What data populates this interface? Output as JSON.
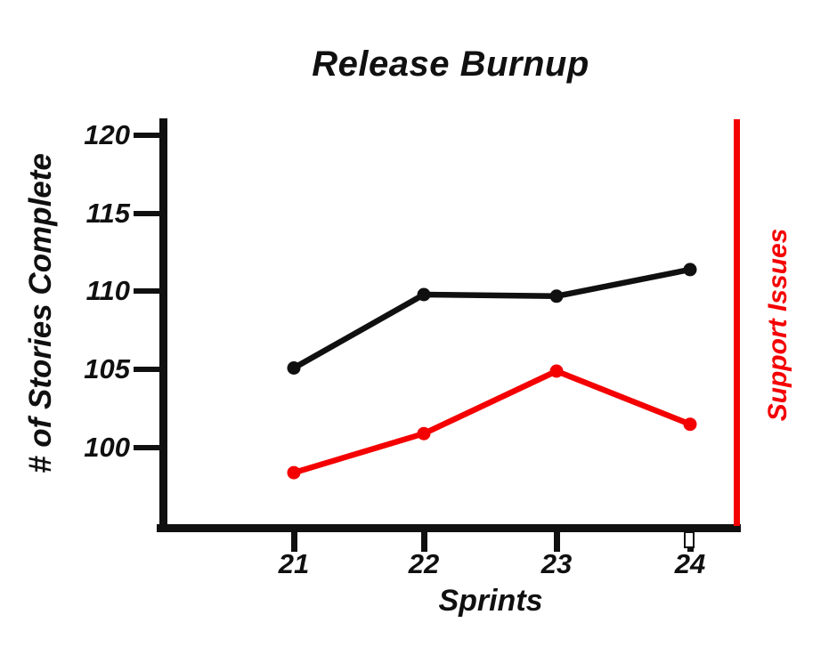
{
  "title": "Release Burnup",
  "colors": {
    "axis_and_text": "#101010",
    "support_red": "#f40000",
    "background": "#ffffff"
  },
  "chart_data": {
    "type": "line",
    "title": "Release Burnup",
    "xlabel": "Sprints",
    "ylabel": "# of Stories Complete",
    "right_label": "Support Issues",
    "categories": [
      21,
      22,
      23,
      24
    ],
    "xtick_labels": [
      "21",
      "22",
      "23",
      "24"
    ],
    "yticks": [
      120,
      115,
      110,
      105,
      100
    ],
    "ytick_labels": [
      "120",
      "115",
      "110",
      "105",
      "100"
    ],
    "ylim": [
      95,
      121
    ],
    "grid": false,
    "legend": "none",
    "series": [
      {
        "name": "# of Stories Complete",
        "color": "#101010",
        "marker": "circle",
        "values": [
          105.1,
          109.8,
          109.7,
          111.4
        ]
      },
      {
        "name": "Support Issues",
        "color": "#f40000",
        "marker": "circle",
        "values": [
          98.4,
          100.9,
          104.9,
          101.5
        ]
      }
    ],
    "annotations": [
      {
        "type": "vline",
        "at": "right edge of plot",
        "color": "#f40000",
        "label": "Support Issues"
      }
    ]
  }
}
